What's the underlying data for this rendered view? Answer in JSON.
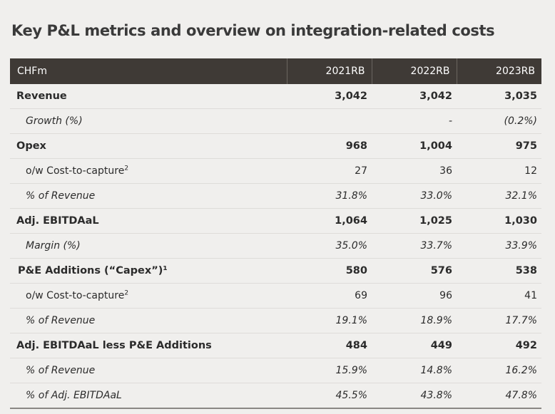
{
  "title": "Key P&L metrics and overview on integration-related costs",
  "header": {
    "label": "CHFm",
    "years": [
      "2021RB",
      "2022RB",
      "2023RB"
    ]
  },
  "rows": [
    {
      "label": "Revenue",
      "sup": "",
      "style": "bold",
      "values": [
        "3,042",
        "3,042",
        "3,035"
      ]
    },
    {
      "label": "Growth (%)",
      "sup": "",
      "style": "italic",
      "values": [
        "",
        "-",
        "(0.2%)"
      ]
    },
    {
      "label": "Opex",
      "sup": "",
      "style": "bold",
      "values": [
        "968",
        "1,004",
        "975"
      ]
    },
    {
      "label": "o/w Cost-to-capture",
      "sup": "2",
      "style": "plain",
      "values": [
        "27",
        "36",
        "12"
      ]
    },
    {
      "label": "% of Revenue",
      "sup": "",
      "style": "italic",
      "values": [
        "31.8%",
        "33.0%",
        "32.1%"
      ]
    },
    {
      "label": "Adj. EBITDAaL",
      "sup": "",
      "style": "bold",
      "values": [
        "1,064",
        "1,025",
        "1,030"
      ]
    },
    {
      "label": "Margin (%)",
      "sup": "",
      "style": "italic",
      "values": [
        "35.0%",
        "33.7%",
        "33.9%"
      ]
    },
    {
      "label": "P&E Additions (“Capex”)¹",
      "sup": "",
      "style": "bold",
      "values": [
        "580",
        "576",
        "538"
      ]
    },
    {
      "label": "o/w Cost-to-capture",
      "sup": "2",
      "style": "plain",
      "values": [
        "69",
        "96",
        "41"
      ]
    },
    {
      "label": "% of Revenue",
      "sup": "",
      "style": "italic",
      "values": [
        "19.1%",
        "18.9%",
        "17.7%"
      ]
    },
    {
      "label": "Adj. EBITDAaL less P&E Additions",
      "sup": "",
      "style": "bold",
      "values": [
        "484",
        "449",
        "492"
      ]
    },
    {
      "label": "% of Revenue",
      "sup": "",
      "style": "italic",
      "values": [
        "15.9%",
        "14.8%",
        "16.2%"
      ]
    },
    {
      "label": "% of Adj. EBITDAaL",
      "sup": "",
      "style": "italic",
      "values": [
        "45.5%",
        "43.8%",
        "47.8%"
      ]
    }
  ]
}
